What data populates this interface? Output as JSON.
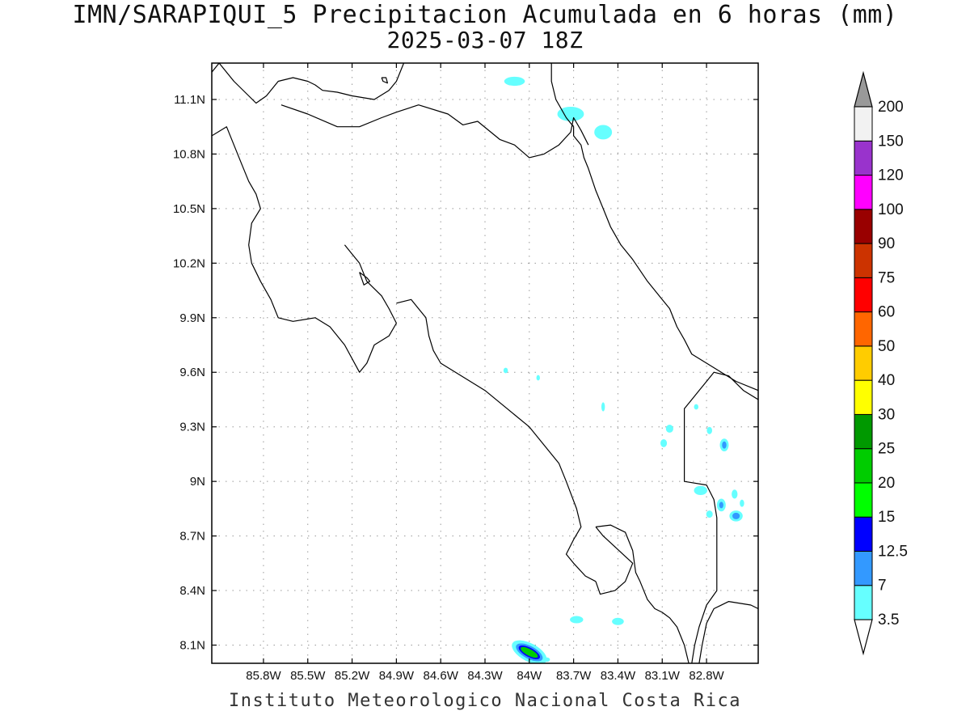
{
  "title_line1": "IMN/SARAPIQUI_5 Precipitacion Acumulada en 6 horas (mm)",
  "title_line2": "2025-03-07 18Z",
  "footer": "Instituto Meteorologico Nacional Costa Rica",
  "map": {
    "lon_range": [
      -86.15,
      -82.45
    ],
    "lat_range": [
      8.0,
      11.3
    ],
    "lat_ticks": [
      {
        "value": 11.1,
        "label": "11.1N"
      },
      {
        "value": 10.8,
        "label": "10.8N"
      },
      {
        "value": 10.5,
        "label": "10.5N"
      },
      {
        "value": 10.2,
        "label": "10.2N"
      },
      {
        "value": 9.9,
        "label": "9.9N"
      },
      {
        "value": 9.6,
        "label": "9.6N"
      },
      {
        "value": 9.3,
        "label": "9.3N"
      },
      {
        "value": 9.0,
        "label": "9N"
      },
      {
        "value": 8.7,
        "label": "8.7N"
      },
      {
        "value": 8.4,
        "label": "8.4N"
      },
      {
        "value": 8.1,
        "label": "8.1N"
      }
    ],
    "lon_ticks": [
      {
        "value": -85.8,
        "label": "85.8W"
      },
      {
        "value": -85.5,
        "label": "85.5W"
      },
      {
        "value": -85.2,
        "label": "85.2W"
      },
      {
        "value": -84.9,
        "label": "84.9W"
      },
      {
        "value": -84.6,
        "label": "84.6W"
      },
      {
        "value": -84.3,
        "label": "84.3W"
      },
      {
        "value": -84.0,
        "label": "84W"
      },
      {
        "value": -83.7,
        "label": "83.7W"
      },
      {
        "value": -83.4,
        "label": "83.4W"
      },
      {
        "value": -83.1,
        "label": "83.1W"
      },
      {
        "value": -82.8,
        "label": "82.8W"
      }
    ],
    "grid": true,
    "coastline_color": "#000000"
  },
  "legend": {
    "levels": [
      {
        "label": "3.5",
        "color": "#66ffff"
      },
      {
        "label": "7",
        "color": "#3399ff"
      },
      {
        "label": "12.5",
        "color": "#0000ff"
      },
      {
        "label": "15",
        "color": "#00ff00"
      },
      {
        "label": "20",
        "color": "#00cc00"
      },
      {
        "label": "25",
        "color": "#009900"
      },
      {
        "label": "30",
        "color": "#ffff00"
      },
      {
        "label": "40",
        "color": "#ffcc00"
      },
      {
        "label": "50",
        "color": "#ff6600"
      },
      {
        "label": "60",
        "color": "#ff0000"
      },
      {
        "label": "75",
        "color": "#cc3300"
      },
      {
        "label": "90",
        "color": "#990000"
      },
      {
        "label": "100",
        "color": "#ff00ff"
      },
      {
        "label": "120",
        "color": "#9933cc"
      },
      {
        "label": "150",
        "color": "#f2f2f2"
      },
      {
        "label": "200",
        "color": "#999999"
      }
    ]
  },
  "precip_areas": [
    {
      "lon": -84.1,
      "lat": 11.2,
      "rx": 0.07,
      "ry": 0.025,
      "color": "#66ffff"
    },
    {
      "lon": -83.72,
      "lat": 11.02,
      "rx": 0.09,
      "ry": 0.04,
      "color": "#66ffff"
    },
    {
      "lon": -83.5,
      "lat": 10.92,
      "rx": 0.06,
      "ry": 0.04,
      "color": "#66ffff"
    },
    {
      "lon": -84.16,
      "lat": 9.61,
      "rx": 0.015,
      "ry": 0.015,
      "color": "#66ffff"
    },
    {
      "lon": -83.94,
      "lat": 9.57,
      "rx": 0.012,
      "ry": 0.015,
      "color": "#66ffff"
    },
    {
      "lon": -83.5,
      "lat": 9.41,
      "rx": 0.012,
      "ry": 0.025,
      "color": "#66ffff"
    },
    {
      "lon": -83.05,
      "lat": 9.29,
      "rx": 0.025,
      "ry": 0.022,
      "color": "#66ffff"
    },
    {
      "lon": -83.09,
      "lat": 9.21,
      "rx": 0.022,
      "ry": 0.022,
      "color": "#66ffff"
    },
    {
      "lon": -82.87,
      "lat": 9.41,
      "rx": 0.015,
      "ry": 0.015,
      "color": "#66ffff"
    },
    {
      "lon": -82.78,
      "lat": 9.28,
      "rx": 0.018,
      "ry": 0.02,
      "color": "#66ffff"
    },
    {
      "lon": -82.68,
      "lat": 9.2,
      "rx": 0.03,
      "ry": 0.035,
      "color": "#66ffff"
    },
    {
      "lon": -82.68,
      "lat": 9.2,
      "rx": 0.015,
      "ry": 0.02,
      "color": "#3399ff"
    },
    {
      "lon": -82.84,
      "lat": 8.95,
      "rx": 0.045,
      "ry": 0.025,
      "color": "#66ffff"
    },
    {
      "lon": -82.61,
      "lat": 8.93,
      "rx": 0.02,
      "ry": 0.025,
      "color": "#66ffff"
    },
    {
      "lon": -82.7,
      "lat": 8.87,
      "rx": 0.03,
      "ry": 0.035,
      "color": "#66ffff"
    },
    {
      "lon": -82.7,
      "lat": 8.87,
      "rx": 0.014,
      "ry": 0.018,
      "color": "#3399ff"
    },
    {
      "lon": -82.78,
      "lat": 8.82,
      "rx": 0.022,
      "ry": 0.02,
      "color": "#66ffff"
    },
    {
      "lon": -82.6,
      "lat": 8.81,
      "rx": 0.045,
      "ry": 0.03,
      "color": "#66ffff"
    },
    {
      "lon": -82.6,
      "lat": 8.81,
      "rx": 0.025,
      "ry": 0.018,
      "color": "#3399ff"
    },
    {
      "lon": -82.56,
      "lat": 8.88,
      "rx": 0.015,
      "ry": 0.02,
      "color": "#66ffff"
    },
    {
      "lon": -83.68,
      "lat": 8.24,
      "rx": 0.045,
      "ry": 0.02,
      "color": "#66ffff"
    },
    {
      "lon": -83.4,
      "lat": 8.23,
      "rx": 0.04,
      "ry": 0.02,
      "color": "#66ffff"
    },
    {
      "lon": -84.0,
      "lat": 8.06,
      "rx": 0.13,
      "ry": 0.05,
      "color": "#66ffff",
      "rotate": 28
    },
    {
      "lon": -84.0,
      "lat": 8.06,
      "rx": 0.1,
      "ry": 0.035,
      "color": "#3399ff",
      "rotate": 28
    },
    {
      "lon": -84.0,
      "lat": 8.06,
      "rx": 0.08,
      "ry": 0.025,
      "color": "#0000ff",
      "rotate": 28
    },
    {
      "lon": -84.0,
      "lat": 8.06,
      "rx": 0.065,
      "ry": 0.018,
      "color": "#00cc00",
      "rotate": 28
    },
    {
      "lon": -83.88,
      "lat": 8.02,
      "rx": 0.02,
      "ry": 0.012,
      "color": "#66ffff"
    }
  ],
  "coastlines": [
    {
      "name": "nicaragua-lake-shore",
      "points": [
        [
          -86.15,
          11.25
        ],
        [
          -86.1,
          11.3
        ],
        [
          -86.0,
          11.2
        ],
        [
          -85.9,
          11.12
        ],
        [
          -85.85,
          11.08
        ],
        [
          -85.78,
          11.12
        ],
        [
          -85.7,
          11.2
        ],
        [
          -85.6,
          11.22
        ],
        [
          -85.5,
          11.2
        ],
        [
          -85.45,
          11.18
        ],
        [
          -85.4,
          11.15
        ],
        [
          -85.3,
          11.14
        ],
        [
          -85.2,
          11.12
        ],
        [
          -85.05,
          11.1
        ],
        [
          -84.95,
          11.15
        ],
        [
          -84.9,
          11.2
        ],
        [
          -84.85,
          11.3
        ]
      ]
    },
    {
      "name": "lake-island",
      "points": [
        [
          -85.0,
          11.22
        ],
        [
          -84.97,
          11.22
        ],
        [
          -84.96,
          11.19
        ],
        [
          -84.99,
          11.2
        ],
        [
          -85.0,
          11.22
        ]
      ]
    },
    {
      "name": "northern-border",
      "points": [
        [
          -85.68,
          11.07
        ],
        [
          -85.5,
          11.02
        ],
        [
          -85.3,
          10.95
        ],
        [
          -85.15,
          10.95
        ],
        [
          -85.0,
          11.0
        ],
        [
          -84.9,
          11.03
        ],
        [
          -84.75,
          11.07
        ],
        [
          -84.55,
          11.02
        ],
        [
          -84.45,
          10.96
        ],
        [
          -84.35,
          10.98
        ],
        [
          -84.2,
          10.88
        ],
        [
          -84.1,
          10.85
        ],
        [
          -84.0,
          10.78
        ],
        [
          -83.9,
          10.8
        ],
        [
          -83.8,
          10.85
        ],
        [
          -83.72,
          10.92
        ],
        [
          -83.7,
          11.0
        ],
        [
          -83.65,
          10.93
        ],
        [
          -83.6,
          10.85
        ]
      ]
    },
    {
      "name": "caribbean-north",
      "points": [
        [
          -83.85,
          11.3
        ],
        [
          -83.85,
          11.2
        ],
        [
          -83.82,
          11.1
        ],
        [
          -83.75,
          11.0
        ],
        [
          -83.7,
          10.95
        ],
        [
          -83.7,
          10.9
        ],
        [
          -83.65,
          10.85
        ],
        [
          -83.63,
          10.78
        ],
        [
          -83.6,
          10.72
        ],
        [
          -83.55,
          10.6
        ],
        [
          -83.5,
          10.5
        ],
        [
          -83.45,
          10.4
        ],
        [
          -83.38,
          10.3
        ],
        [
          -83.3,
          10.22
        ],
        [
          -83.2,
          10.1
        ],
        [
          -83.1,
          10.0
        ],
        [
          -83.05,
          9.95
        ],
        [
          -83.0,
          9.85
        ],
        [
          -82.95,
          9.78
        ],
        [
          -82.9,
          9.7
        ],
        [
          -82.8,
          9.65
        ],
        [
          -82.7,
          9.6
        ],
        [
          -82.6,
          9.55
        ],
        [
          -82.45,
          9.5
        ]
      ]
    },
    {
      "name": "panama-border",
      "points": [
        [
          -82.45,
          9.45
        ],
        [
          -82.55,
          9.5
        ],
        [
          -82.65,
          9.58
        ],
        [
          -82.75,
          9.6
        ],
        [
          -82.8,
          9.55
        ],
        [
          -82.85,
          9.5
        ],
        [
          -82.9,
          9.45
        ],
        [
          -82.95,
          9.4
        ],
        [
          -82.95,
          9.2
        ],
        [
          -82.95,
          9.0
        ],
        [
          -82.8,
          8.98
        ],
        [
          -82.75,
          8.9
        ],
        [
          -82.73,
          8.8
        ],
        [
          -82.73,
          8.6
        ],
        [
          -82.73,
          8.4
        ],
        [
          -82.8,
          8.32
        ],
        [
          -82.85,
          8.2
        ],
        [
          -82.88,
          8.1
        ],
        [
          -82.9,
          8.0
        ]
      ]
    },
    {
      "name": "panama-coast-south",
      "points": [
        [
          -82.45,
          8.3
        ],
        [
          -82.5,
          8.32
        ],
        [
          -82.65,
          8.34
        ],
        [
          -82.75,
          8.3
        ],
        [
          -82.8,
          8.22
        ],
        [
          -82.83,
          8.1
        ],
        [
          -82.85,
          8.0
        ]
      ]
    },
    {
      "name": "guanacaste-pacific-coast",
      "points": [
        [
          -86.15,
          10.9
        ],
        [
          -86.05,
          10.95
        ],
        [
          -86.0,
          10.85
        ],
        [
          -85.95,
          10.75
        ],
        [
          -85.9,
          10.65
        ],
        [
          -85.85,
          10.58
        ],
        [
          -85.82,
          10.5
        ],
        [
          -85.88,
          10.42
        ],
        [
          -85.9,
          10.3
        ],
        [
          -85.88,
          10.2
        ],
        [
          -85.82,
          10.1
        ],
        [
          -85.75,
          10.0
        ],
        [
          -85.7,
          9.9
        ],
        [
          -85.6,
          9.88
        ],
        [
          -85.45,
          9.9
        ],
        [
          -85.35,
          9.85
        ],
        [
          -85.25,
          9.75
        ],
        [
          -85.15,
          9.6
        ],
        [
          -85.1,
          9.65
        ],
        [
          -85.05,
          9.75
        ],
        [
          -84.95,
          9.8
        ],
        [
          -84.9,
          9.87
        ],
        [
          -84.95,
          9.95
        ],
        [
          -85.0,
          10.02
        ],
        [
          -85.1,
          10.1
        ],
        [
          -85.15,
          10.2
        ],
        [
          -85.2,
          10.25
        ],
        [
          -85.25,
          10.3
        ]
      ]
    },
    {
      "name": "gulf-nicoya-inner",
      "points": [
        [
          -85.15,
          10.15
        ],
        [
          -85.1,
          10.12
        ],
        [
          -85.08,
          10.1
        ],
        [
          -85.12,
          10.08
        ],
        [
          -85.15,
          10.15
        ]
      ]
    },
    {
      "name": "central-pacific-coast",
      "points": [
        [
          -84.9,
          9.98
        ],
        [
          -84.8,
          10.0
        ],
        [
          -84.7,
          9.9
        ],
        [
          -84.68,
          9.8
        ],
        [
          -84.65,
          9.72
        ],
        [
          -84.6,
          9.65
        ],
        [
          -84.5,
          9.6
        ],
        [
          -84.3,
          9.5
        ],
        [
          -84.15,
          9.4
        ],
        [
          -84.0,
          9.3
        ],
        [
          -83.9,
          9.2
        ],
        [
          -83.8,
          9.1
        ],
        [
          -83.75,
          9.0
        ],
        [
          -83.68,
          8.85
        ],
        [
          -83.65,
          8.75
        ],
        [
          -83.7,
          8.68
        ],
        [
          -83.75,
          8.6
        ],
        [
          -83.7,
          8.55
        ],
        [
          -83.62,
          8.48
        ],
        [
          -83.55,
          8.45
        ]
      ]
    },
    {
      "name": "golfo-dulce",
      "points": [
        [
          -83.55,
          8.75
        ],
        [
          -83.45,
          8.76
        ],
        [
          -83.35,
          8.72
        ],
        [
          -83.3,
          8.62
        ],
        [
          -83.28,
          8.5
        ],
        [
          -83.25,
          8.45
        ],
        [
          -83.2,
          8.35
        ],
        [
          -83.15,
          8.3
        ],
        [
          -83.1,
          8.28
        ],
        [
          -83.05,
          8.25
        ],
        [
          -83.0,
          8.2
        ],
        [
          -82.95,
          8.1
        ],
        [
          -82.92,
          8.0
        ]
      ]
    },
    {
      "name": "osa-peninsula",
      "points": [
        [
          -83.55,
          8.45
        ],
        [
          -83.52,
          8.38
        ],
        [
          -83.42,
          8.4
        ],
        [
          -83.35,
          8.45
        ],
        [
          -83.3,
          8.55
        ],
        [
          -83.5,
          8.7
        ],
        [
          -83.55,
          8.75
        ]
      ]
    }
  ]
}
